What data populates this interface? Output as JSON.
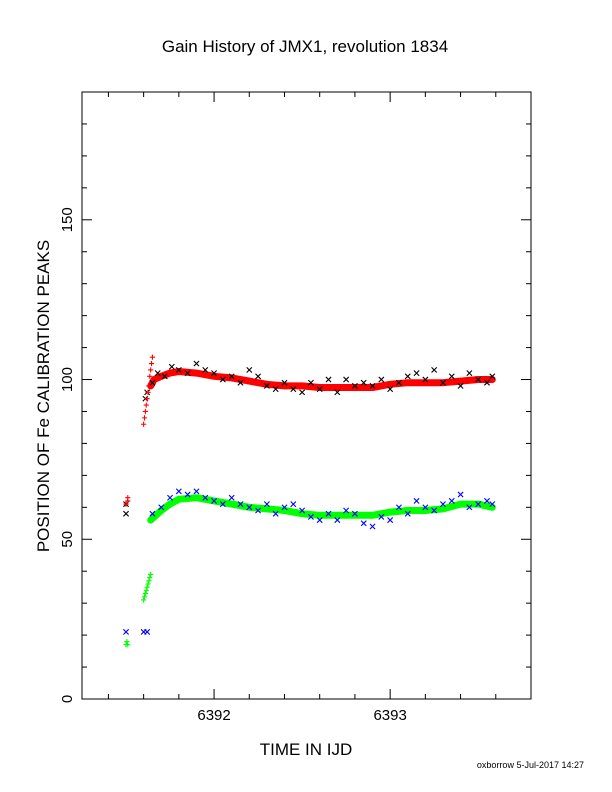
{
  "chart_data": {
    "type": "scatter",
    "title": "Gain History of JMX1, revolution 1834",
    "xlabel": "TIME IN IJD",
    "ylabel": "POSITION OF Fe CALIBRATION PEAKS",
    "xlim": [
      6391.25,
      6393.8
    ],
    "ylim": [
      0,
      190
    ],
    "x_ticks": [
      6392,
      6393
    ],
    "y_ticks": [
      0,
      50,
      100,
      150
    ],
    "grid": false,
    "legend": "none",
    "series": [
      {
        "color": "#000000",
        "marker": "x",
        "fit_color": "#ff0000",
        "points": [
          [
            6391.5,
            58
          ],
          [
            6391.5,
            61
          ],
          [
            6391.61,
            94
          ],
          [
            6391.62,
            96
          ],
          [
            6391.65,
            99
          ],
          [
            6391.68,
            102
          ],
          [
            6391.72,
            101
          ],
          [
            6391.76,
            104
          ],
          [
            6391.8,
            103
          ],
          [
            6391.85,
            102
          ],
          [
            6391.9,
            105
          ],
          [
            6391.95,
            103
          ],
          [
            6392.0,
            102
          ],
          [
            6392.05,
            100
          ],
          [
            6392.1,
            101
          ],
          [
            6392.15,
            99
          ],
          [
            6392.2,
            103
          ],
          [
            6392.25,
            101
          ],
          [
            6392.3,
            98
          ],
          [
            6392.35,
            97
          ],
          [
            6392.4,
            99
          ],
          [
            6392.45,
            97
          ],
          [
            6392.5,
            96
          ],
          [
            6392.55,
            99
          ],
          [
            6392.6,
            97
          ],
          [
            6392.65,
            100
          ],
          [
            6392.7,
            96
          ],
          [
            6392.75,
            100
          ],
          [
            6392.8,
            98
          ],
          [
            6392.85,
            99
          ],
          [
            6392.9,
            98
          ],
          [
            6392.95,
            100
          ],
          [
            6393.0,
            97
          ],
          [
            6393.05,
            99
          ],
          [
            6393.1,
            101
          ],
          [
            6393.15,
            102
          ],
          [
            6393.2,
            100
          ],
          [
            6393.25,
            103
          ],
          [
            6393.3,
            99
          ],
          [
            6393.35,
            101
          ],
          [
            6393.4,
            98
          ],
          [
            6393.45,
            102
          ],
          [
            6393.5,
            100
          ],
          [
            6393.55,
            99
          ],
          [
            6393.58,
            101
          ]
        ],
        "fit": [
          [
            6391.64,
            98
          ],
          [
            6391.66,
            100
          ],
          [
            6391.7,
            101
          ],
          [
            6391.75,
            102
          ],
          [
            6391.8,
            102.5
          ],
          [
            6391.9,
            102
          ],
          [
            6392.0,
            101
          ],
          [
            6392.1,
            100.5
          ],
          [
            6392.2,
            99.5
          ],
          [
            6392.3,
            98.5
          ],
          [
            6392.4,
            98
          ],
          [
            6392.5,
            98
          ],
          [
            6392.6,
            97.5
          ],
          [
            6392.7,
            97.5
          ],
          [
            6392.8,
            97.5
          ],
          [
            6392.9,
            97.5
          ],
          [
            6393.0,
            98.5
          ],
          [
            6393.1,
            99
          ],
          [
            6393.2,
            99
          ],
          [
            6393.3,
            99
          ],
          [
            6393.4,
            99.5
          ],
          [
            6393.5,
            100
          ],
          [
            6393.58,
            100
          ]
        ]
      },
      {
        "color": "#ff0000",
        "marker": "+",
        "points": [
          [
            6391.5,
            61
          ],
          [
            6391.51,
            62
          ],
          [
            6391.51,
            63
          ],
          [
            6391.6,
            86
          ],
          [
            6391.605,
            88
          ],
          [
            6391.61,
            90
          ],
          [
            6391.615,
            92
          ],
          [
            6391.62,
            94
          ],
          [
            6391.625,
            96
          ],
          [
            6391.63,
            98
          ],
          [
            6391.635,
            101
          ],
          [
            6391.64,
            103
          ],
          [
            6391.645,
            105
          ],
          [
            6391.65,
            107
          ]
        ]
      },
      {
        "color": "#0000ff",
        "marker": "x",
        "fit_color": "#00ff00",
        "points": [
          [
            6391.5,
            21
          ],
          [
            6391.6,
            21
          ],
          [
            6391.62,
            21
          ],
          [
            6391.65,
            58
          ],
          [
            6391.7,
            60
          ],
          [
            6391.75,
            63
          ],
          [
            6391.8,
            65
          ],
          [
            6391.85,
            64
          ],
          [
            6391.9,
            65
          ],
          [
            6391.95,
            63
          ],
          [
            6392.0,
            62
          ],
          [
            6392.05,
            61
          ],
          [
            6392.1,
            63
          ],
          [
            6392.15,
            61
          ],
          [
            6392.2,
            60
          ],
          [
            6392.25,
            59
          ],
          [
            6392.3,
            61
          ],
          [
            6392.35,
            58
          ],
          [
            6392.4,
            60
          ],
          [
            6392.45,
            61
          ],
          [
            6392.5,
            59
          ],
          [
            6392.55,
            57
          ],
          [
            6392.6,
            56
          ],
          [
            6392.65,
            58
          ],
          [
            6392.7,
            56
          ],
          [
            6392.75,
            59
          ],
          [
            6392.8,
            58
          ],
          [
            6392.85,
            55
          ],
          [
            6392.9,
            54
          ],
          [
            6392.95,
            57
          ],
          [
            6393.0,
            56
          ],
          [
            6393.05,
            60
          ],
          [
            6393.1,
            58
          ],
          [
            6393.15,
            62
          ],
          [
            6393.2,
            60
          ],
          [
            6393.25,
            59
          ],
          [
            6393.3,
            61
          ],
          [
            6393.35,
            62
          ],
          [
            6393.4,
            64
          ],
          [
            6393.45,
            60
          ],
          [
            6393.5,
            61
          ],
          [
            6393.55,
            62
          ],
          [
            6393.58,
            61
          ]
        ],
        "fit": [
          [
            6391.64,
            56
          ],
          [
            6391.66,
            57
          ],
          [
            6391.7,
            59
          ],
          [
            6391.75,
            61
          ],
          [
            6391.8,
            62.5
          ],
          [
            6391.9,
            63
          ],
          [
            6392.0,
            62
          ],
          [
            6392.1,
            61
          ],
          [
            6392.2,
            60
          ],
          [
            6392.3,
            59.5
          ],
          [
            6392.4,
            59
          ],
          [
            6392.5,
            58
          ],
          [
            6392.6,
            57.5
          ],
          [
            6392.7,
            57.5
          ],
          [
            6392.8,
            57.5
          ],
          [
            6392.9,
            57.5
          ],
          [
            6393.0,
            58.5
          ],
          [
            6393.1,
            59
          ],
          [
            6393.2,
            59
          ],
          [
            6393.3,
            59.5
          ],
          [
            6393.4,
            61
          ],
          [
            6393.5,
            61
          ],
          [
            6393.58,
            60
          ]
        ]
      },
      {
        "color": "#00ff00",
        "marker": "+",
        "points": [
          [
            6391.5,
            17
          ],
          [
            6391.505,
            18
          ],
          [
            6391.51,
            17
          ],
          [
            6391.6,
            31
          ],
          [
            6391.605,
            32
          ],
          [
            6391.61,
            33
          ],
          [
            6391.615,
            34
          ],
          [
            6391.62,
            35
          ],
          [
            6391.625,
            36
          ],
          [
            6391.63,
            37
          ],
          [
            6391.635,
            38
          ],
          [
            6391.64,
            39
          ]
        ]
      }
    ]
  },
  "footer": {
    "credit": "oxborrow  5-Jul-2017 14:27"
  }
}
